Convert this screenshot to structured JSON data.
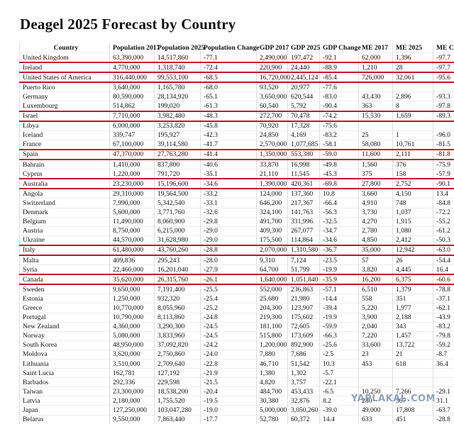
{
  "title": "Deagel 2025 Forecast by Country",
  "table": {
    "header": [
      "Country",
      "Population 2017",
      "Population 2025",
      "Population Change",
      "GDP 2017",
      "GDP 2025",
      "GDP Change",
      "ME 2017",
      "ME 2025",
      "ME Ch"
    ],
    "rows": [
      [
        "United Kingdom",
        "63,390,000",
        "14,517,860",
        "-77.1",
        "2,490,000",
        "197,472",
        "-92.1",
        "62,000",
        "1,396",
        "-97.7"
      ],
      [
        "Ireland",
        "4,770,000",
        "1,318,740",
        "-72.4",
        "220,900",
        "24,440",
        "-88.9",
        "1,210",
        "28",
        "-97.7"
      ],
      [
        "United States of America",
        "316,440,000",
        "99,553,100",
        "-68.5",
        "16,720,000",
        "2,445,124",
        "-85.4",
        "726,000",
        "32,061",
        "-95.6"
      ],
      [
        "Puerto Rico",
        "3,640,000",
        "1,165,780",
        "-68.0",
        "93,520",
        "20,977",
        "-77.6"
      ],
      [
        "Germany",
        "80,590,000",
        "28,134,920",
        "-65.1",
        "3,650,000",
        "620,544",
        "-83.0",
        "43,430",
        "2,896",
        "-93.3"
      ],
      [
        "Luxembourg",
        "514,862",
        "199,020",
        "-61.3",
        "60,540",
        "5,792",
        "-90.4",
        "363",
        "8",
        "-97.8"
      ],
      [
        "Israel",
        "7,710,000",
        "3,982,480",
        "-48.3",
        "272,700",
        "70,478",
        "-74.2",
        "15,530",
        "1,659",
        "-89.3"
      ],
      [
        "Libya",
        "6,000,000",
        "3,253,820",
        "-45.8",
        "70,920",
        "17,328",
        "-75.6"
      ],
      [
        "Iceland",
        "339,747",
        "195,927",
        "-42.3",
        "24,850",
        "4,169",
        "-83.2",
        "25",
        "1",
        "-96.0"
      ],
      [
        "France",
        "67,100,000",
        "39,114,580",
        "-41.7",
        "2,570,000",
        "1,077,685",
        "-58.1",
        "58,080",
        "10,761",
        "-81.5"
      ],
      [
        "Spain",
        "47,370,000",
        "27,763,280",
        "-41.4",
        "1,350,000",
        "553,380",
        "-59.0",
        "11,600",
        "2,111",
        "-81.8"
      ],
      [
        "Bahrain",
        "1,410,000",
        "837,800",
        "-40.6",
        "33,870",
        "16,998",
        "-49.8",
        "1,560",
        "376",
        "-75.9"
      ],
      [
        "Cyprus",
        "1,220,000",
        "791,720",
        "-35.1",
        "21,110",
        "11,545",
        "-45.3",
        "375",
        "158",
        "-57.9"
      ],
      [
        "Australia",
        "23,230,000",
        "15,196,600",
        "-34.6",
        "1,390,000",
        "420,361",
        "-69.8",
        "27,800",
        "2,752",
        "-90.1"
      ],
      [
        "Angola",
        "29,310,000",
        "19,564,500",
        "-33.2",
        "124,000",
        "137,360",
        "10.8",
        "3,660",
        "4,150",
        "13.4"
      ],
      [
        "Switzerland",
        "7,990,000",
        "5,342,540",
        "-33.1",
        "646,200",
        "217,367",
        "-66.4",
        "4,910",
        "748",
        "-84.8"
      ],
      [
        "Denmark",
        "5,600,000",
        "3,771,760",
        "-32.6",
        "324,100",
        "141,763",
        "-56.3",
        "3,730",
        "1,037",
        "-72.2"
      ],
      [
        "Belgium",
        "11,490,000",
        "8,060,900",
        "-29.8",
        "491,700",
        "331,996",
        "-32.5",
        "4,270",
        "1,915",
        "-55.2"
      ],
      [
        "Austria",
        "8,750,000",
        "6,215,000",
        "-29.0",
        "409,300",
        "267,077",
        "-34.7",
        "2,780",
        "1,080",
        "-61.2"
      ],
      [
        "Ukraine",
        "44,570,000",
        "31,628,980",
        "-29.0",
        "175,500",
        "114,864",
        "-34.6",
        "4,850",
        "2,412",
        "-50.3"
      ],
      [
        "Italy",
        "61,480,000",
        "43,760,260",
        "-28.8",
        "2,070,000",
        "1,310,580",
        "-36.7",
        "35,000",
        "12,942",
        "-63.0"
      ],
      [
        "Malta",
        "409,836",
        "295,243",
        "-28.0",
        "9,310",
        "7,124",
        "-23.5",
        "57",
        "26",
        "-54.4"
      ],
      [
        "Syria",
        "22,460,000",
        "16,201,040",
        "-27.9",
        "64,700",
        "51,799",
        "-19.9",
        "3,820",
        "4,445",
        "16.4"
      ],
      [
        "Canada",
        "35,620,000",
        "26,315,760",
        "-26.1",
        "1,640,000",
        "1,051,840",
        "-35.9",
        "16,200",
        "6,375",
        "-60.6"
      ],
      [
        "Sweden",
        "9,650,000",
        "7,191,400",
        "-25.5",
        "552,000",
        "236,863",
        "-57.1",
        "6,510",
        "1,379",
        "-78.8"
      ],
      [
        "Estonia",
        "1,250,000",
        "932,320",
        "-25.4",
        "25,680",
        "21,980",
        "-14.4",
        "558",
        "351",
        "-37.1"
      ],
      [
        "Greece",
        "10,770,000",
        "8,055,960",
        "-25.2",
        "204,300",
        "123,907",
        "-39.4",
        "5,220",
        "1,977",
        "-62.1"
      ],
      [
        "Portugal",
        "10,790,000",
        "8,113,860",
        "-24.8",
        "219,300",
        "175,602",
        "-19.9",
        "3,900",
        "2,188",
        "-43.9"
      ],
      [
        "New Zealand",
        "4,360,000",
        "3,290,300",
        "-24.5",
        "181,100",
        "72,605",
        "-59.9",
        "2,040",
        "343",
        "-83.2"
      ],
      [
        "Norway",
        "5,080,000",
        "3,833,960",
        "-24.5",
        "515,800",
        "173,609",
        "-66.3",
        "7,220",
        "1,457",
        "-79.8"
      ],
      [
        "South Korea",
        "48,950,000",
        "37,092,820",
        "-24.2",
        "1,200,000",
        "892,900",
        "-25.6",
        "33,600",
        "13,722",
        "-59.2"
      ],
      [
        "Moldova",
        "3,620,000",
        "2,750,860",
        "-24.0",
        "7,880",
        "7,686",
        "-2.5",
        "23",
        "21",
        "-8.7"
      ],
      [
        "Lithuania",
        "3,510,000",
        "2,709,640",
        "-22.8",
        "46,710",
        "51,542",
        "10.3",
        "453",
        "618",
        "36.4"
      ],
      [
        "Saint Lucia",
        "162,781",
        "127,192",
        "-21.9",
        "1,380",
        "1,302",
        "-5.7"
      ],
      [
        "Barbados",
        "292,336",
        "229,598",
        "-21.5",
        "4,820",
        "3,757",
        "-22.1"
      ],
      [
        "Taiwan",
        "23,300,000",
        "18,538,200",
        "-20.4",
        "484,700",
        "453,433",
        "-6.5",
        "10,250",
        "7,266",
        "-29.1"
      ],
      [
        "Latvia",
        "2,180,000",
        "1,755,520",
        "-19.5",
        "30,380",
        "32,876",
        "8.2",
        "280",
        "367",
        "31.1"
      ],
      [
        "Japan",
        "127,250,000",
        "103,047,280",
        "-19.0",
        "5,000,000",
        "3,050,260",
        "-39.0",
        "49,000",
        "17,808",
        "-63.7"
      ],
      [
        "Belarus",
        "9,550,000",
        "7,863,440",
        "-17.7",
        "52,780",
        "60,372",
        "14.4",
        "633",
        "451",
        "-28.8"
      ]
    ]
  },
  "watermark": "YAPLAKAL.COM"
}
